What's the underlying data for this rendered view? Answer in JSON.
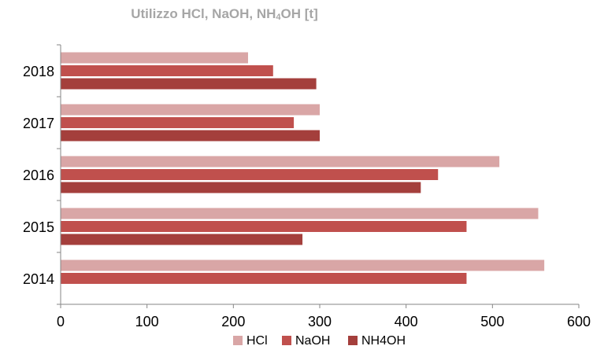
{
  "chart_data": {
    "type": "bar",
    "orientation": "horizontal",
    "title_parts": [
      "Utilizzo HCl, NaOH, NH",
      "4",
      "OH [t]"
    ],
    "categories": [
      "2014",
      "2015",
      "2016",
      "2017",
      "2018"
    ],
    "series": [
      {
        "name": "HCl",
        "color": "#d9a6a6",
        "values": [
          560,
          553,
          508,
          300,
          217
        ]
      },
      {
        "name": "NaOH",
        "color": "#c0504d",
        "values": [
          470,
          470,
          437,
          270,
          246
        ]
      },
      {
        "name": "NH4OH",
        "color": "#a43f3c",
        "values": [
          null,
          280,
          417,
          300,
          296
        ]
      }
    ],
    "xlim": [
      0,
      600
    ],
    "xticks": [
      "0",
      "100",
      "200",
      "300",
      "400",
      "500",
      "600"
    ],
    "grid": false,
    "legend_position": "bottom"
  }
}
